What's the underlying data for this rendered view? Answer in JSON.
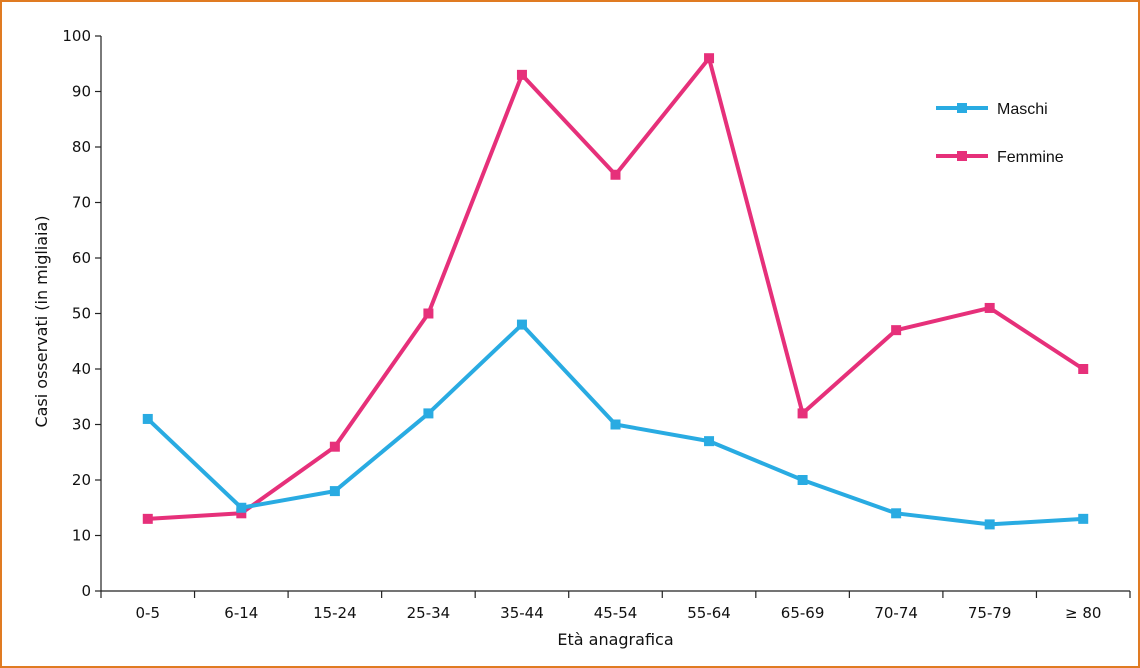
{
  "chart_data": {
    "type": "line",
    "categories": [
      "0-5",
      "6-14",
      "15-24",
      "25-34",
      "35-44",
      "45-54",
      "55-64",
      "65-69",
      "70-74",
      "75-79",
      "≥ 80"
    ],
    "series": [
      {
        "name": "Maschi",
        "color": "#29abe2",
        "values": [
          31,
          15,
          18,
          32,
          48,
          30,
          27,
          20,
          14,
          12,
          13
        ]
      },
      {
        "name": "Femmine",
        "color": "#e6307a",
        "values": [
          13,
          14,
          26,
          50,
          93,
          75,
          96,
          32,
          47,
          51,
          40
        ]
      }
    ],
    "xlabel": "Età anagrafica",
    "ylabel": "Casi osservati (in migliaia)",
    "ylim": [
      0,
      100
    ],
    "yticks": [
      0,
      10,
      20,
      30,
      40,
      50,
      60,
      70,
      80,
      90,
      100
    ],
    "grid": false,
    "legend_position": "top-right",
    "frame_color": "#e07b22"
  }
}
